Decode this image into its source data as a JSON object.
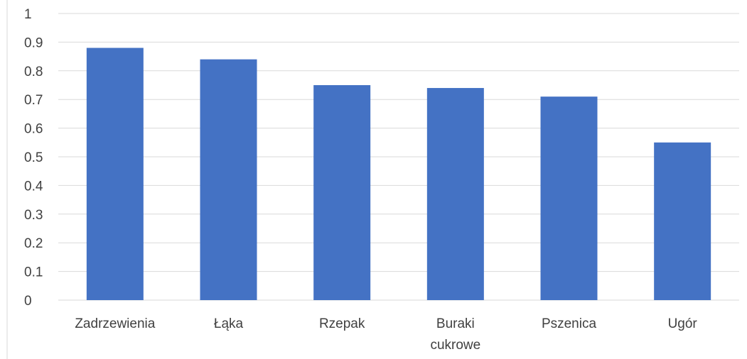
{
  "chart_data": {
    "type": "bar",
    "categories": [
      "Zadrzewienia",
      "Łąka",
      "Rzepak",
      "Buraki cukrowe",
      "Pszenica",
      "Ugór"
    ],
    "category_label_lines": [
      [
        "Zadrzewienia"
      ],
      [
        "Łąka"
      ],
      [
        "Rzepak"
      ],
      [
        "Buraki",
        "cukrowe"
      ],
      [
        "Pszenica"
      ],
      [
        "Ugór"
      ]
    ],
    "values": [
      0.88,
      0.84,
      0.75,
      0.74,
      0.71,
      0.55
    ],
    "yticks": [
      "0",
      "0.1",
      "0.2",
      "0.3",
      "0.4",
      "0.5",
      "0.6",
      "0.7",
      "0.8",
      "0.9",
      "1"
    ],
    "ylim": [
      0,
      1
    ],
    "grid": true,
    "legend": "none",
    "bar_color": "#4472c4",
    "grid_color": "#d9d9d9",
    "text_color": "#404040"
  }
}
